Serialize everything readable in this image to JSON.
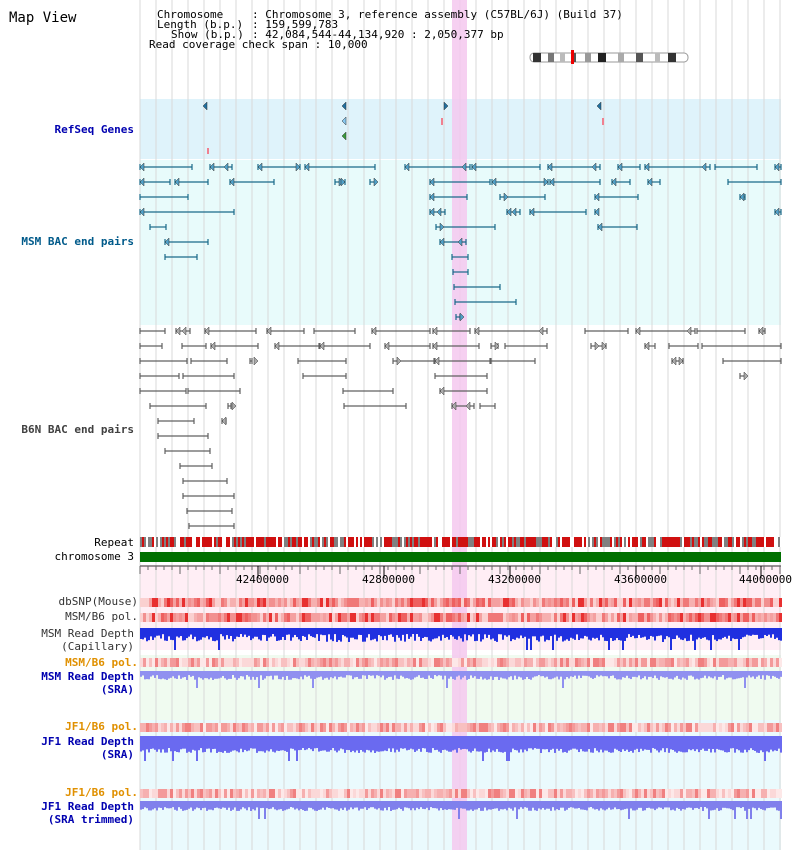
{
  "title": "Map View",
  "info": {
    "chromosome_label": "Chromosome",
    "chromosome_value": "Chromosome 3, reference assembly (C57BL/6J) (Build 37)",
    "length_label": "Length (b.p.)",
    "length_value": "159,599,783",
    "show_label": "Show (b.p.)",
    "show_value": "42,084,544-44,134,920 : 2,050,377 bp",
    "coverage_label": "Read coverage check span",
    "coverage_value": "10,000"
  },
  "tracks": {
    "refseq": "RefSeq Genes",
    "msm_bac": "MSM BAC end pairs",
    "b6n_bac": "B6N BAC end pairs",
    "repeat": "Repeat",
    "chromosome": "chromosome 3",
    "dbsnp": "dbSNP(Mouse)",
    "msm_b6_pol_1": "MSM/B6 pol.",
    "msm_read_depth_cap_1": "MSM Read Depth",
    "msm_read_depth_cap_2": "(Capillary)",
    "msm_b6_pol_2": "MSM/B6 pol.",
    "msm_read_depth_sra_1": "MSM Read Depth",
    "msm_read_depth_sra_2": "(SRA)",
    "jf1_b6_pol_1": "JF1/B6 pol.",
    "jf1_read_depth_sra_1": "JF1 Read Depth",
    "jf1_read_depth_sra_2": "(SRA)",
    "jf1_b6_pol_2": "JF1/B6 pol.",
    "jf1_read_depth_trim_1": "JF1 Read Depth",
    "jf1_read_depth_trim_2": "(SRA trimmed)"
  },
  "axis": {
    "ticks": [
      "42400000",
      "42800000",
      "43200000",
      "43600000",
      "44000000"
    ]
  },
  "colors": {
    "refseq_label": "#0000b0",
    "msm_label": "#005a8a",
    "b6n_label": "#404040",
    "orange_label": "#e09000",
    "blue_label": "#0000b0",
    "highlight": "#f5c8ee",
    "chromosome_bar": "#007000"
  }
}
